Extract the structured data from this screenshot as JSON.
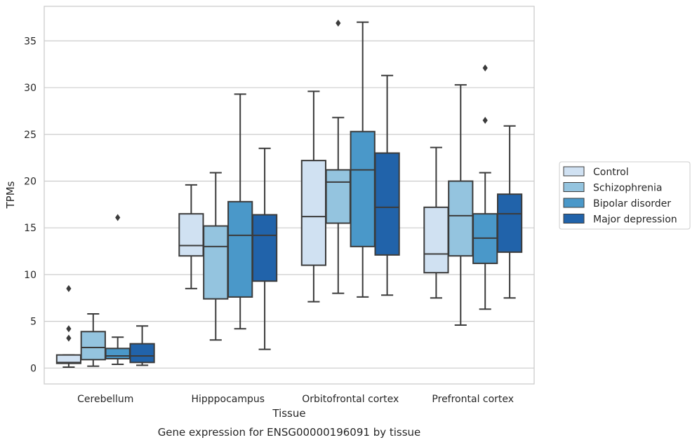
{
  "chart_data": {
    "type": "box",
    "caption": "Gene expression for ENSG00000196091 by tissue",
    "xlabel": "Tissue",
    "ylabel": "TPMs",
    "ylim": [
      -1.7,
      38.7
    ],
    "yticks": [
      0,
      5,
      10,
      15,
      20,
      25,
      30,
      35
    ],
    "grid": true,
    "legend_position": "right",
    "categories": [
      "Cerebellum",
      "Hipppocampus",
      "Orbitofrontal cortex",
      "Prefrontal cortex"
    ],
    "series": [
      {
        "name": "Control",
        "color": "#d0e1f2",
        "boxes": [
          {
            "min": 0.1,
            "q1": 0.5,
            "median": 0.6,
            "q3": 1.4,
            "max": 1.4,
            "outliers": [
              3.2,
              4.2,
              8.5
            ]
          },
          {
            "min": 8.5,
            "q1": 12.0,
            "median": 13.1,
            "q3": 16.5,
            "max": 19.6,
            "outliers": []
          },
          {
            "min": 7.1,
            "q1": 11.0,
            "median": 16.2,
            "q3": 22.2,
            "max": 29.6,
            "outliers": []
          },
          {
            "min": 7.5,
            "q1": 10.2,
            "median": 12.2,
            "q3": 17.2,
            "max": 23.6,
            "outliers": []
          }
        ]
      },
      {
        "name": "Schizophrenia",
        "color": "#94c4df",
        "boxes": [
          {
            "min": 0.2,
            "q1": 0.9,
            "median": 2.2,
            "q3": 3.9,
            "max": 5.8,
            "outliers": []
          },
          {
            "min": 3.0,
            "q1": 7.4,
            "median": 13.0,
            "q3": 15.2,
            "max": 20.9,
            "outliers": []
          },
          {
            "min": 8.0,
            "q1": 15.5,
            "median": 19.9,
            "q3": 21.2,
            "max": 26.8,
            "outliers": [
              36.9
            ]
          },
          {
            "min": 4.6,
            "q1": 12.0,
            "median": 16.3,
            "q3": 20.0,
            "max": 30.3,
            "outliers": []
          }
        ]
      },
      {
        "name": "Bipolar disorder",
        "color": "#4a98c9",
        "boxes": [
          {
            "min": 0.4,
            "q1": 1.0,
            "median": 1.3,
            "q3": 2.1,
            "max": 3.3,
            "outliers": [
              16.1
            ]
          },
          {
            "min": 4.2,
            "q1": 7.6,
            "median": 14.2,
            "q3": 17.8,
            "max": 29.3,
            "outliers": []
          },
          {
            "min": 7.6,
            "q1": 13.0,
            "median": 21.2,
            "q3": 25.3,
            "max": 37.0,
            "outliers": []
          },
          {
            "min": 6.3,
            "q1": 11.2,
            "median": 13.9,
            "q3": 16.5,
            "max": 20.9,
            "outliers": [
              26.5,
              32.1
            ]
          }
        ]
      },
      {
        "name": "Major depression",
        "color": "#2163aa",
        "boxes": [
          {
            "min": 0.3,
            "q1": 0.6,
            "median": 1.3,
            "q3": 2.6,
            "max": 4.5,
            "outliers": []
          },
          {
            "min": 2.0,
            "q1": 9.3,
            "median": 14.2,
            "q3": 16.4,
            "max": 23.5,
            "outliers": []
          },
          {
            "min": 7.8,
            "q1": 12.1,
            "median": 17.2,
            "q3": 23.0,
            "max": 31.3,
            "outliers": []
          },
          {
            "min": 7.5,
            "q1": 12.4,
            "median": 16.5,
            "q3": 18.6,
            "max": 25.9,
            "outliers": []
          }
        ]
      }
    ]
  }
}
